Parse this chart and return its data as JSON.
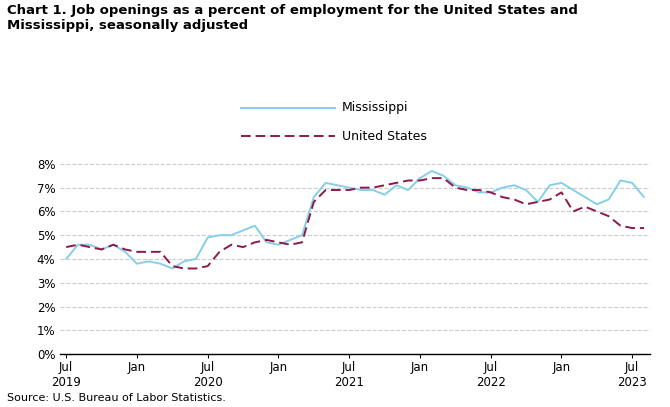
{
  "title": "Chart 1. Job openings as a percent of employment for the United States and\nMississippi, seasonally adjusted",
  "source": "Source: U.S. Bureau of Labor Statistics.",
  "ms_label": "Mississippi",
  "us_label": "United States",
  "ms_color": "#87CEEB",
  "us_color": "#8B1A4A",
  "ylim": [
    0,
    0.089
  ],
  "yticks": [
    0,
    0.01,
    0.02,
    0.03,
    0.04,
    0.05,
    0.06,
    0.07,
    0.08
  ],
  "ytick_labels": [
    "0%",
    "1%",
    "2%",
    "3%",
    "4%",
    "5%",
    "6%",
    "7%",
    "8%"
  ],
  "xtick_labels": [
    "Jul\n2019",
    "Jan",
    "Jul\n2020",
    "Jan",
    "Jul\n2021",
    "Jan",
    "Jul\n2022",
    "Jan",
    "Jul\n2023"
  ],
  "mississippi": [
    0.04,
    0.046,
    0.046,
    0.044,
    0.046,
    0.043,
    0.038,
    0.039,
    0.038,
    0.036,
    0.039,
    0.04,
    0.049,
    0.05,
    0.05,
    0.052,
    0.054,
    0.047,
    0.046,
    0.048,
    0.05,
    0.066,
    0.072,
    0.071,
    0.07,
    0.069,
    0.069,
    0.067,
    0.071,
    0.069,
    0.074,
    0.077,
    0.075,
    0.071,
    0.07,
    0.068,
    0.068,
    0.07,
    0.071,
    0.069,
    0.064,
    0.071,
    0.072,
    0.069,
    0.066,
    0.063,
    0.065,
    0.073,
    0.072,
    0.066
  ],
  "us": [
    0.045,
    0.046,
    0.045,
    0.044,
    0.046,
    0.044,
    0.043,
    0.043,
    0.043,
    0.037,
    0.036,
    0.036,
    0.037,
    0.043,
    0.046,
    0.045,
    0.047,
    0.048,
    0.047,
    0.046,
    0.047,
    0.064,
    0.069,
    0.069,
    0.069,
    0.07,
    0.07,
    0.071,
    0.072,
    0.073,
    0.073,
    0.074,
    0.074,
    0.07,
    0.069,
    0.069,
    0.068,
    0.066,
    0.065,
    0.063,
    0.064,
    0.065,
    0.068,
    0.06,
    0.062,
    0.06,
    0.058,
    0.054,
    0.053,
    0.053
  ]
}
